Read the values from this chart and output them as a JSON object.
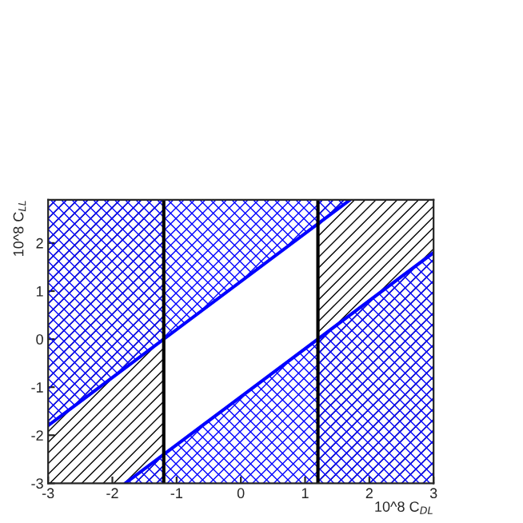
{
  "chart_data": {
    "type": "line",
    "xlabel": "10^8 C$_{DL}$",
    "ylabel": "10^8 C$_{LL}$",
    "xlim": [
      -3,
      3
    ],
    "ylim": [
      -3,
      2.9
    ],
    "xticks": [
      -3,
      -2,
      -1,
      0,
      1,
      2,
      3
    ],
    "yticks": [
      -3,
      -2,
      -1,
      0,
      1,
      2
    ],
    "series": [
      {
        "color": "#0000ff",
        "x": [
          -3,
          1.7
        ],
        "values": [
          -1.8,
          2.9
        ],
        "lower": [
          -1.8,
          2.9
        ],
        "upper": [
          2.9,
          2.9
        ]
      },
      {
        "color": "#0000ff",
        "x": [
          -1.8,
          3
        ],
        "values": [
          -3,
          1.8
        ],
        "lower": [
          -3,
          -3
        ],
        "upper": [
          -3,
          1.8
        ]
      }
    ],
    "ref_lines": [
      {
        "axis": "x",
        "value": -1.2,
        "color": "#000000"
      },
      {
        "axis": "x",
        "value": 1.2,
        "color": "#000000"
      }
    ],
    "bands": [
      {
        "axis": "x",
        "from": -3,
        "to": -1.2,
        "color": "#000000"
      },
      {
        "axis": "x",
        "from": 1.2,
        "to": 3,
        "color": "#000000"
      }
    ],
    "grid": false,
    "legend": false
  }
}
